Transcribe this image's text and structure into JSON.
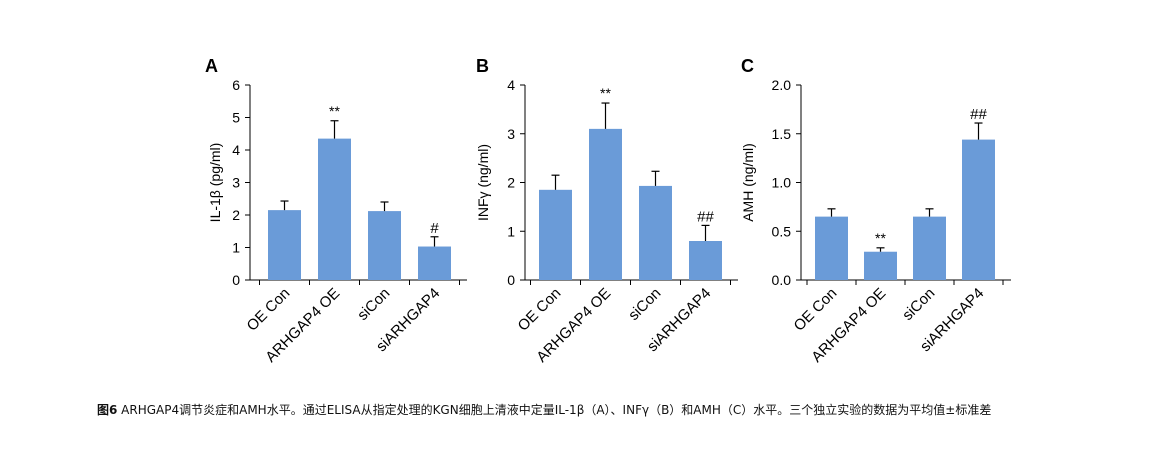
{
  "chart_data": [
    {
      "type": "bar",
      "panel": "A",
      "ylabel": "IL-1β (pg/ml)",
      "ylim": [
        0,
        6
      ],
      "yticks": [
        "0",
        "1",
        "2",
        "3",
        "4",
        "5",
        "6"
      ],
      "categories": [
        "OE Con",
        "ARHGAP4 OE",
        "siCon",
        "siARHGAP4"
      ],
      "values": [
        2.15,
        4.35,
        2.12,
        1.03
      ],
      "errors": [
        0.28,
        0.55,
        0.28,
        0.3
      ],
      "annotations": [
        "",
        "**",
        "",
        "#"
      ],
      "bar_color": "#6a9bd8"
    },
    {
      "type": "bar",
      "panel": "B",
      "ylabel": "INFγ (ng/ml)",
      "ylim": [
        0,
        4
      ],
      "yticks": [
        "0",
        "1",
        "2",
        "3",
        "4"
      ],
      "categories": [
        "OE Con",
        "ARHGAP4 OE",
        "siCon",
        "siARHGAP4"
      ],
      "values": [
        1.85,
        3.1,
        1.93,
        0.8
      ],
      "errors": [
        0.3,
        0.53,
        0.3,
        0.32
      ],
      "annotations": [
        "",
        "**",
        "",
        "##"
      ],
      "bar_color": "#6a9bd8"
    },
    {
      "type": "bar",
      "panel": "C",
      "ylabel": "AMH (ng/ml)",
      "ylim": [
        0,
        2
      ],
      "yticks": [
        "0.0",
        "0.5",
        "1.0",
        "1.5",
        "2.0"
      ],
      "categories": [
        "OE Con",
        "ARHGAP4 OE",
        "siCon",
        "siARHGAP4"
      ],
      "values": [
        0.65,
        0.29,
        0.65,
        1.44
      ],
      "errors": [
        0.08,
        0.04,
        0.08,
        0.17
      ],
      "annotations": [
        "",
        "**",
        "",
        "##"
      ],
      "bar_color": "#6a9bd8"
    }
  ],
  "caption": {
    "label": "图6",
    "text": " ARHGAP4调节炎症和AMH水平。通过ELISA从指定处理的KGN细胞上清液中定量IL-1β（A）、INFγ（B）和AMH（C）水平。三个独立实验的数据为平均值±标准差"
  }
}
